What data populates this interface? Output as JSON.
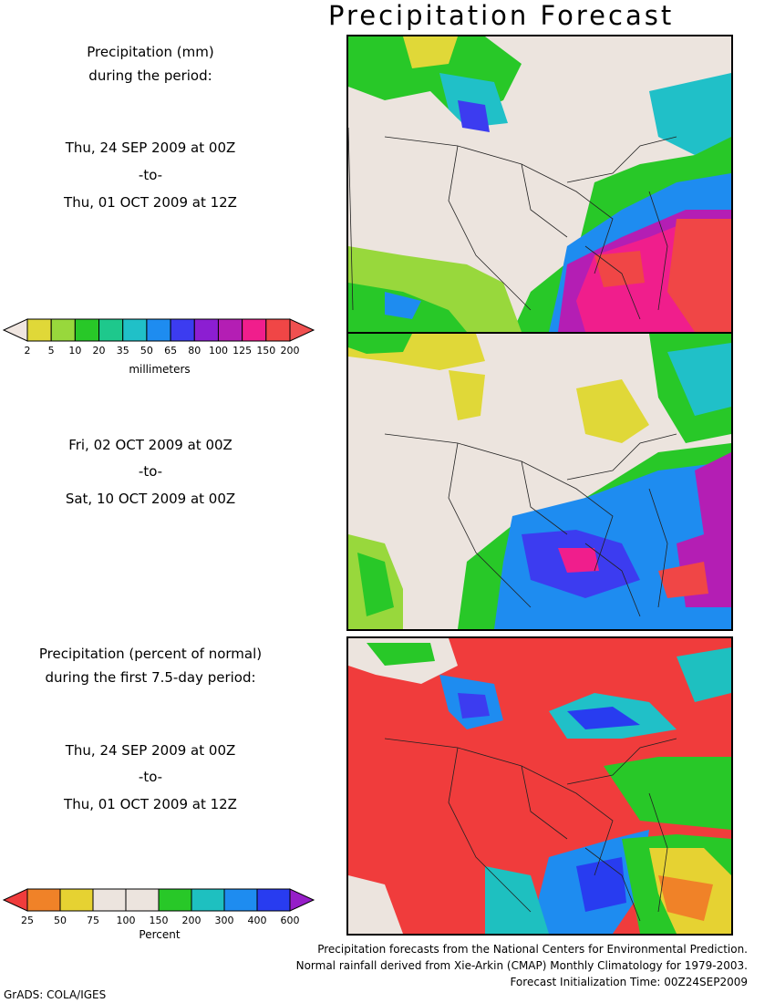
{
  "title": "Precipitation Forecast",
  "panel1": {
    "heading_line1": "Precipitation (mm)",
    "heading_line2": "during the period:",
    "start": "Thu, 24 SEP 2009 at 00Z",
    "to": "-to-",
    "end": "Thu, 01 OCT 2009 at 12Z"
  },
  "panel2": {
    "start": "Fri, 02 OCT 2009 at 00Z",
    "to": "-to-",
    "end": "Sat, 10 OCT 2009 at 00Z"
  },
  "panel3": {
    "heading_line1": "Precipitation (percent of normal)",
    "heading_line2": "during the first 7.5-day period:",
    "start": "Thu, 24 SEP 2009 at 00Z",
    "to": "-to-",
    "end": "Thu, 01 OCT 2009 at 12Z"
  },
  "colorbar_mm": {
    "ticks": [
      "2",
      "5",
      "10",
      "20",
      "35",
      "50",
      "65",
      "80",
      "100",
      "125",
      "150",
      "200"
    ],
    "colors": [
      "#e0d838",
      "#98d83c",
      "#28c828",
      "#1ec88c",
      "#20c0c8",
      "#1e8cf0",
      "#3c3cf0",
      "#8c1ed2",
      "#b41eb4",
      "#f01e8c",
      "#f04646"
    ],
    "low_color": "#f0e6e0",
    "high_color": "#f05050",
    "unit": "millimeters"
  },
  "colorbar_pct": {
    "ticks": [
      "25",
      "50",
      "75",
      "100",
      "150",
      "200",
      "300",
      "400",
      "600"
    ],
    "colors": [
      "#f08228",
      "#e6d232",
      "#ece4de",
      "#ece4de",
      "#28c828",
      "#1ec0c0",
      "#1e8cf0",
      "#283cf0"
    ],
    "low_color": "#f03c3c",
    "high_color": "#961ec8",
    "unit": "Percent"
  },
  "footer": {
    "line1": "Precipitation forecasts from the National Centers for Environmental Prediction.",
    "line2": "Normal rainfall derived from Xie-Arkin (CMAP) Monthly Climatology for 1979-2003.",
    "line3": "Forecast Initialization Time: 00Z24SEP2009"
  },
  "credit": "GrADS: COLA/IGES"
}
